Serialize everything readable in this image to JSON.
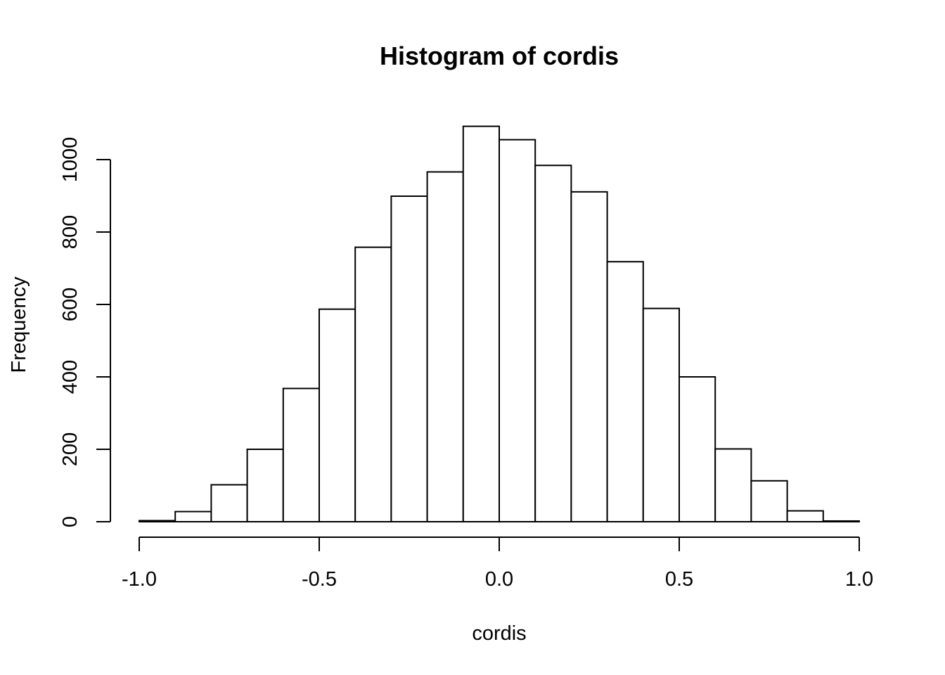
{
  "chart_data": {
    "type": "bar",
    "title": "Histogram of cordis",
    "xlabel": "cordis",
    "ylabel": "Frequency",
    "bin_edges": [
      -1.0,
      -0.9,
      -0.8,
      -0.7,
      -0.6,
      -0.5,
      -0.4,
      -0.3,
      -0.2,
      -0.1,
      0.0,
      0.1,
      0.2,
      0.3,
      0.4,
      0.5,
      0.6,
      0.7,
      0.8,
      0.9,
      1.0
    ],
    "values": [
      3,
      28,
      102,
      200,
      368,
      587,
      758,
      899,
      966,
      1092,
      1055,
      984,
      911,
      718,
      589,
      400,
      201,
      113,
      30,
      2
    ],
    "xlim": [
      -1.0,
      1.0
    ],
    "ylim": [
      0,
      1000
    ],
    "x_ticks": [
      -1.0,
      -0.5,
      0.0,
      0.5,
      1.0
    ],
    "x_tick_labels": [
      "-1.0",
      "-0.5",
      "0.0",
      "0.5",
      "1.0"
    ],
    "y_ticks": [
      0,
      200,
      400,
      600,
      800,
      1000
    ],
    "y_tick_labels": [
      "0",
      "200",
      "400",
      "600",
      "800",
      "1000"
    ],
    "grid": false,
    "bar_fill": "#ffffff",
    "bar_stroke": "#000000"
  }
}
